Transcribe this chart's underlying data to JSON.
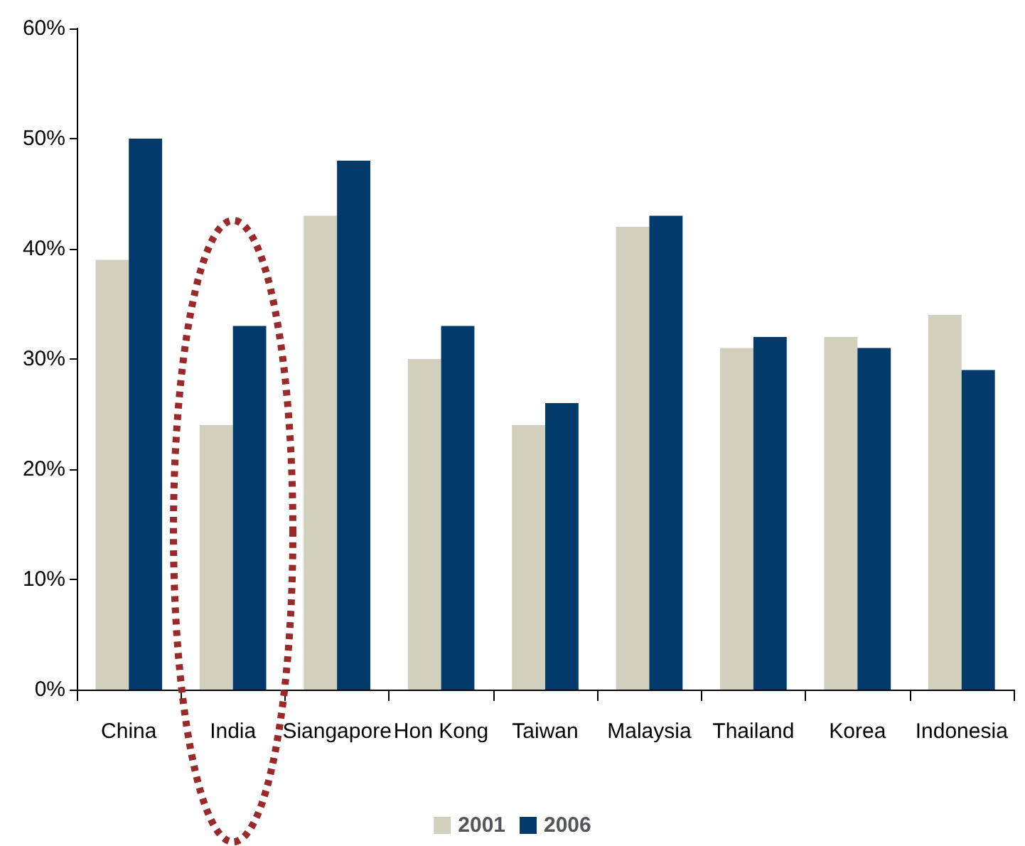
{
  "chart_data": {
    "type": "bar",
    "categories": [
      "China",
      "India",
      "Siangapore",
      "Hon Kong",
      "Taiwan",
      "Malaysia",
      "Thailand",
      "Korea",
      "Indonesia"
    ],
    "series": [
      {
        "name": "2001",
        "color": "#d3cfbd",
        "values": [
          39,
          24,
          43,
          30,
          24,
          42,
          31,
          32,
          34
        ]
      },
      {
        "name": "2006",
        "color": "#023a6b",
        "values": [
          50,
          33,
          48,
          33,
          26,
          43,
          32,
          31,
          29
        ]
      }
    ],
    "ylim": [
      0,
      60
    ],
    "yticks": [
      {
        "value": 0,
        "label": "0%"
      },
      {
        "value": 10,
        "label": "10%"
      },
      {
        "value": 20,
        "label": "20%"
      },
      {
        "value": 30,
        "label": "30%"
      },
      {
        "value": 40,
        "label": "40%"
      },
      {
        "value": 50,
        "label": "50%"
      },
      {
        "value": 60,
        "label": "60%"
      }
    ],
    "grid": false,
    "legend": "bottom"
  }
}
